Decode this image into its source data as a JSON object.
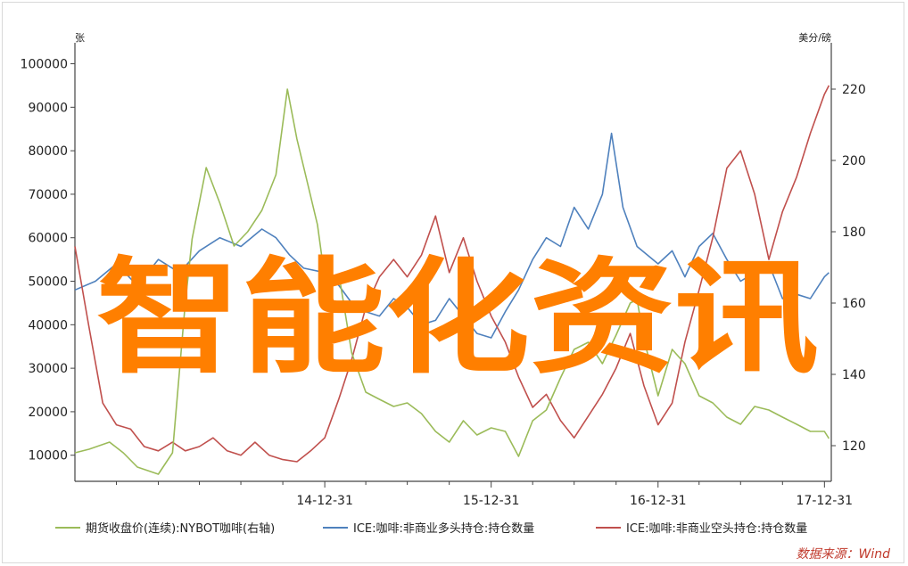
{
  "chart_data": {
    "type": "line",
    "left_unit": "张",
    "right_unit": "美分/磅",
    "yleft_ticks": [
      10000,
      20000,
      30000,
      40000,
      50000,
      60000,
      70000,
      80000,
      90000,
      100000
    ],
    "yright_ticks": [
      120,
      140,
      160,
      180,
      200,
      220
    ],
    "ylim_left": [
      4000,
      104000
    ],
    "ylim_right": [
      110,
      232
    ],
    "x_tick_labels": [
      "14-12-31",
      "15-12-31",
      "16-12-31",
      "17-12-31"
    ],
    "x_tick_dates": [
      "2014-12-31",
      "2015-12-31",
      "2016-12-31",
      "2017-12-31"
    ],
    "xlim": [
      "2013-07-01",
      "2018-01-15"
    ],
    "grid": false,
    "legend_position": "bottom",
    "series": [
      {
        "name": "期货收盘价(连续):NYBOT咖啡(右轴)",
        "axis": "right",
        "color": "#9bbb59",
        "points": [
          [
            "2013-07-01",
            118
          ],
          [
            "2013-08-01",
            119
          ],
          [
            "2013-09-15",
            121
          ],
          [
            "2013-10-15",
            118
          ],
          [
            "2013-11-15",
            114
          ],
          [
            "2013-12-31",
            112
          ],
          [
            "2014-01-31",
            118
          ],
          [
            "2014-02-28",
            160
          ],
          [
            "2014-03-15",
            178
          ],
          [
            "2014-04-15",
            198
          ],
          [
            "2014-05-15",
            188
          ],
          [
            "2014-06-15",
            176
          ],
          [
            "2014-07-15",
            180
          ],
          [
            "2014-08-15",
            186
          ],
          [
            "2014-09-15",
            196
          ],
          [
            "2014-10-10",
            220
          ],
          [
            "2014-10-31",
            206
          ],
          [
            "2014-11-15",
            198
          ],
          [
            "2014-12-15",
            182
          ],
          [
            "2014-12-31",
            167
          ],
          [
            "2015-01-31",
            168
          ],
          [
            "2015-02-28",
            146
          ],
          [
            "2015-03-31",
            135
          ],
          [
            "2015-04-30",
            133
          ],
          [
            "2015-05-31",
            131
          ],
          [
            "2015-06-30",
            132
          ],
          [
            "2015-07-31",
            129
          ],
          [
            "2015-08-31",
            124
          ],
          [
            "2015-09-30",
            121
          ],
          [
            "2015-10-31",
            127
          ],
          [
            "2015-11-30",
            123
          ],
          [
            "2015-12-31",
            125
          ],
          [
            "2016-01-31",
            124
          ],
          [
            "2016-02-29",
            117
          ],
          [
            "2016-03-31",
            127
          ],
          [
            "2016-04-30",
            130
          ],
          [
            "2016-05-31",
            139
          ],
          [
            "2016-06-30",
            147
          ],
          [
            "2016-07-31",
            149
          ],
          [
            "2016-08-31",
            143
          ],
          [
            "2016-09-30",
            151
          ],
          [
            "2016-10-31",
            160
          ],
          [
            "2016-11-15",
            161
          ],
          [
            "2016-11-30",
            150
          ],
          [
            "2016-12-31",
            134
          ],
          [
            "2017-01-31",
            147
          ],
          [
            "2017-02-28",
            143
          ],
          [
            "2017-03-31",
            134
          ],
          [
            "2017-04-30",
            132
          ],
          [
            "2017-05-31",
            128
          ],
          [
            "2017-06-30",
            126
          ],
          [
            "2017-07-31",
            131
          ],
          [
            "2017-08-31",
            130
          ],
          [
            "2017-09-30",
            128
          ],
          [
            "2017-10-31",
            126
          ],
          [
            "2017-11-30",
            124
          ],
          [
            "2017-12-31",
            124
          ],
          [
            "2018-01-10",
            122
          ]
        ]
      },
      {
        "name": "ICE:咖啡:非商业多头持仓:持仓数量",
        "axis": "left",
        "color": "#4f81bd",
        "points": [
          [
            "2013-07-01",
            48000
          ],
          [
            "2013-08-15",
            50000
          ],
          [
            "2013-09-30",
            54000
          ],
          [
            "2013-11-15",
            49000
          ],
          [
            "2013-12-31",
            55000
          ],
          [
            "2014-02-15",
            52000
          ],
          [
            "2014-03-31",
            57000
          ],
          [
            "2014-05-15",
            60000
          ],
          [
            "2014-06-30",
            58000
          ],
          [
            "2014-08-15",
            62000
          ],
          [
            "2014-09-15",
            60000
          ],
          [
            "2014-10-15",
            56000
          ],
          [
            "2014-11-15",
            53000
          ],
          [
            "2014-12-31",
            52000
          ],
          [
            "2015-01-31",
            49000
          ],
          [
            "2015-02-28",
            45000
          ],
          [
            "2015-03-31",
            43000
          ],
          [
            "2015-04-30",
            42000
          ],
          [
            "2015-05-31",
            46000
          ],
          [
            "2015-06-30",
            44000
          ],
          [
            "2015-07-31",
            40000
          ],
          [
            "2015-08-31",
            41000
          ],
          [
            "2015-09-30",
            46000
          ],
          [
            "2015-10-31",
            42000
          ],
          [
            "2015-11-30",
            38000
          ],
          [
            "2015-12-31",
            37000
          ],
          [
            "2016-01-31",
            43000
          ],
          [
            "2016-02-29",
            48000
          ],
          [
            "2016-03-31",
            55000
          ],
          [
            "2016-04-30",
            60000
          ],
          [
            "2016-05-31",
            58000
          ],
          [
            "2016-06-30",
            67000
          ],
          [
            "2016-07-31",
            62000
          ],
          [
            "2016-08-31",
            70000
          ],
          [
            "2016-09-20",
            84000
          ],
          [
            "2016-10-15",
            67000
          ],
          [
            "2016-11-15",
            58000
          ],
          [
            "2016-12-31",
            54000
          ],
          [
            "2017-01-31",
            57000
          ],
          [
            "2017-02-28",
            51000
          ],
          [
            "2017-03-31",
            58000
          ],
          [
            "2017-04-30",
            61000
          ],
          [
            "2017-05-31",
            55000
          ],
          [
            "2017-06-30",
            50000
          ],
          [
            "2017-07-31",
            52000
          ],
          [
            "2017-08-31",
            54000
          ],
          [
            "2017-09-30",
            46000
          ],
          [
            "2017-10-31",
            47000
          ],
          [
            "2017-11-30",
            46000
          ],
          [
            "2017-12-31",
            51000
          ],
          [
            "2018-01-10",
            52000
          ]
        ]
      },
      {
        "name": "ICE:咖啡:非商业空头持仓:持仓数量",
        "axis": "left",
        "color": "#c0504d",
        "points": [
          [
            "2013-07-01",
            58000
          ],
          [
            "2013-07-31",
            40000
          ],
          [
            "2013-08-31",
            22000
          ],
          [
            "2013-09-30",
            17000
          ],
          [
            "2013-10-31",
            16000
          ],
          [
            "2013-11-30",
            12000
          ],
          [
            "2013-12-31",
            11000
          ],
          [
            "2014-01-31",
            13000
          ],
          [
            "2014-02-28",
            11000
          ],
          [
            "2014-03-31",
            12000
          ],
          [
            "2014-04-30",
            14000
          ],
          [
            "2014-05-31",
            11000
          ],
          [
            "2014-06-30",
            10000
          ],
          [
            "2014-07-31",
            13000
          ],
          [
            "2014-08-31",
            10000
          ],
          [
            "2014-09-30",
            9000
          ],
          [
            "2014-10-31",
            8500
          ],
          [
            "2014-11-30",
            11000
          ],
          [
            "2014-12-31",
            14000
          ],
          [
            "2015-01-31",
            23000
          ],
          [
            "2015-02-28",
            32000
          ],
          [
            "2015-03-31",
            44000
          ],
          [
            "2015-04-30",
            51000
          ],
          [
            "2015-05-31",
            55000
          ],
          [
            "2015-06-30",
            51000
          ],
          [
            "2015-07-31",
            56000
          ],
          [
            "2015-08-31",
            65000
          ],
          [
            "2015-09-30",
            52000
          ],
          [
            "2015-10-31",
            60000
          ],
          [
            "2015-11-30",
            50000
          ],
          [
            "2015-12-31",
            42000
          ],
          [
            "2016-01-31",
            36000
          ],
          [
            "2016-02-29",
            28000
          ],
          [
            "2016-03-31",
            21000
          ],
          [
            "2016-04-30",
            24000
          ],
          [
            "2016-05-31",
            18000
          ],
          [
            "2016-06-30",
            14000
          ],
          [
            "2016-07-31",
            19000
          ],
          [
            "2016-08-31",
            24000
          ],
          [
            "2016-09-30",
            30000
          ],
          [
            "2016-10-31",
            38000
          ],
          [
            "2016-11-30",
            26000
          ],
          [
            "2016-12-31",
            17000
          ],
          [
            "2017-01-31",
            22000
          ],
          [
            "2017-02-28",
            36000
          ],
          [
            "2017-03-31",
            48000
          ],
          [
            "2017-04-30",
            60000
          ],
          [
            "2017-05-31",
            76000
          ],
          [
            "2017-06-30",
            80000
          ],
          [
            "2017-07-31",
            70000
          ],
          [
            "2017-08-31",
            55000
          ],
          [
            "2017-09-30",
            66000
          ],
          [
            "2017-10-31",
            74000
          ],
          [
            "2017-11-30",
            84000
          ],
          [
            "2017-12-31",
            93000
          ],
          [
            "2018-01-10",
            95000
          ]
        ]
      }
    ]
  },
  "source_note": "数据来源：Wind",
  "watermark": "智能化资讯"
}
